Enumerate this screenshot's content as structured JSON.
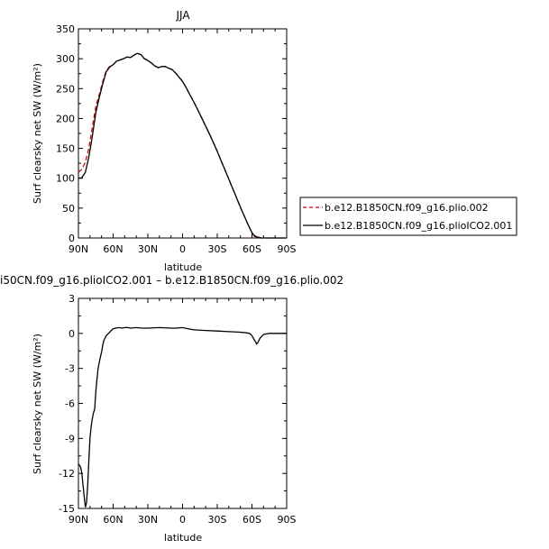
{
  "chart_data": [
    {
      "type": "line",
      "title": "JJA",
      "xlabel": "latitude",
      "ylabel": "Surf clearsky net SW (W/m²)",
      "xlim": [
        90,
        -90
      ],
      "ylim": [
        0,
        350
      ],
      "x_ticks": [
        90,
        60,
        30,
        0,
        -30,
        -60,
        -90
      ],
      "x_tick_labels": [
        "90N",
        "60N",
        "30N",
        "0",
        "30S",
        "60S",
        "90S"
      ],
      "y_ticks": [
        0,
        50,
        100,
        150,
        200,
        250,
        300,
        350
      ],
      "y_tick_labels": [
        "0",
        "50",
        "100",
        "150",
        "200",
        "250",
        "300",
        "350"
      ],
      "legend_position": "right",
      "series": [
        {
          "name": "b.e12.B1850CN.f09_g16.plio.002",
          "color": "#cc0000",
          "dash": "dashed",
          "x": [
            90,
            87,
            84,
            81,
            78,
            75,
            72,
            69,
            66,
            63,
            60,
            57,
            54,
            51,
            48,
            45,
            42,
            39,
            36,
            33,
            30,
            27,
            24,
            21,
            18,
            15,
            12,
            9,
            6,
            3,
            0,
            -3,
            -6,
            -9,
            -12,
            -15,
            -18,
            -21,
            -24,
            -27,
            -30,
            -33,
            -36,
            -39,
            -42,
            -45,
            -48,
            -51,
            -54,
            -57,
            -60,
            -62,
            -64,
            -66,
            -68,
            -70,
            -75,
            -80,
            -85,
            -90
          ],
          "y": [
            110,
            115,
            127,
            150,
            185,
            220,
            240,
            262,
            280,
            287,
            290,
            296,
            298,
            300,
            303,
            302,
            306,
            309,
            307,
            300,
            297,
            293,
            288,
            285,
            287,
            287,
            284,
            282,
            276,
            269,
            262,
            252,
            241,
            230,
            219,
            207,
            195,
            183,
            171,
            158,
            145,
            131,
            117,
            103,
            89,
            75,
            61,
            47,
            34,
            21,
            9,
            3,
            1,
            0,
            0,
            0,
            0,
            0,
            0,
            0
          ]
        },
        {
          "name": "b.e12.B1850CN.f09_g16.plioICO2.001",
          "color": "#000000",
          "dash": "solid",
          "x": [
            90,
            87,
            84,
            81,
            78,
            75,
            72,
            69,
            66,
            63,
            60,
            57,
            54,
            51,
            48,
            45,
            42,
            39,
            36,
            33,
            30,
            27,
            24,
            21,
            18,
            15,
            12,
            9,
            6,
            3,
            0,
            -3,
            -6,
            -9,
            -12,
            -15,
            -18,
            -21,
            -24,
            -27,
            -30,
            -33,
            -36,
            -39,
            -42,
            -45,
            -48,
            -51,
            -54,
            -57,
            -60,
            -62,
            -64,
            -66,
            -68,
            -70,
            -75,
            -80,
            -85,
            -90
          ],
          "y": [
            100,
            101,
            110,
            135,
            170,
            210,
            235,
            258,
            278,
            286,
            290,
            296,
            298,
            300,
            303,
            302,
            306,
            309,
            307,
            300,
            297,
            293,
            288,
            285,
            287,
            287,
            284,
            282,
            276,
            269,
            262,
            252,
            241,
            230,
            219,
            207,
            195,
            183,
            171,
            158,
            145,
            131,
            117,
            103,
            89,
            75,
            61,
            47,
            34,
            21,
            9,
            4,
            2,
            1,
            0,
            0,
            0,
            0,
            0,
            0
          ]
        }
      ]
    },
    {
      "type": "line",
      "title": "i50CN.f09_g16.plioICO2.001 – b.e12.B1850CN.f09_g16.plio.002",
      "xlabel": "latitude",
      "ylabel": "Surf clearsky net SW (W/m²)",
      "xlim": [
        90,
        -90
      ],
      "ylim": [
        -15,
        3
      ],
      "x_ticks": [
        90,
        60,
        30,
        0,
        -30,
        -60,
        -90
      ],
      "x_tick_labels": [
        "90N",
        "60N",
        "30N",
        "0",
        "30S",
        "60S",
        "90S"
      ],
      "y_ticks": [
        -15,
        -12,
        -9,
        -6,
        -3,
        0,
        3
      ],
      "y_tick_labels": [
        "-15",
        "-12",
        "-9",
        "-6",
        "-3",
        "0",
        "3"
      ],
      "series": [
        {
          "color": "#000000",
          "dash": "solid",
          "x": [
            90,
            89,
            88,
            87,
            86,
            85,
            84,
            83,
            82,
            81,
            80,
            79,
            78,
            77,
            76,
            75,
            74,
            73,
            72,
            71,
            70,
            69,
            68,
            67,
            66,
            65,
            64,
            63,
            62,
            61,
            60,
            58,
            55,
            52,
            50,
            47,
            45,
            40,
            35,
            30,
            20,
            10,
            5,
            0,
            -5,
            -10,
            -20,
            -30,
            -40,
            -50,
            -55,
            -58,
            -60,
            -62,
            -63,
            -64,
            -65,
            -67,
            -70,
            -75,
            -80,
            -85,
            -90
          ],
          "y": [
            -11.2,
            -11.3,
            -11.5,
            -12.0,
            -13.0,
            -14.0,
            -14.9,
            -14.5,
            -13.0,
            -11.0,
            -9.0,
            -8.0,
            -7.3,
            -6.8,
            -6.5,
            -5.0,
            -4.0,
            -3.0,
            -2.5,
            -2.0,
            -1.6,
            -1.0,
            -0.6,
            -0.4,
            -0.2,
            -0.1,
            0.0,
            0.1,
            0.2,
            0.3,
            0.4,
            0.45,
            0.5,
            0.45,
            0.5,
            0.5,
            0.45,
            0.5,
            0.45,
            0.45,
            0.5,
            0.45,
            0.45,
            0.5,
            0.4,
            0.3,
            0.25,
            0.2,
            0.15,
            0.1,
            0.05,
            0.0,
            -0.2,
            -0.55,
            -0.7,
            -0.9,
            -0.8,
            -0.4,
            -0.1,
            0.0,
            0.0,
            0.0,
            0.0
          ]
        }
      ]
    }
  ]
}
